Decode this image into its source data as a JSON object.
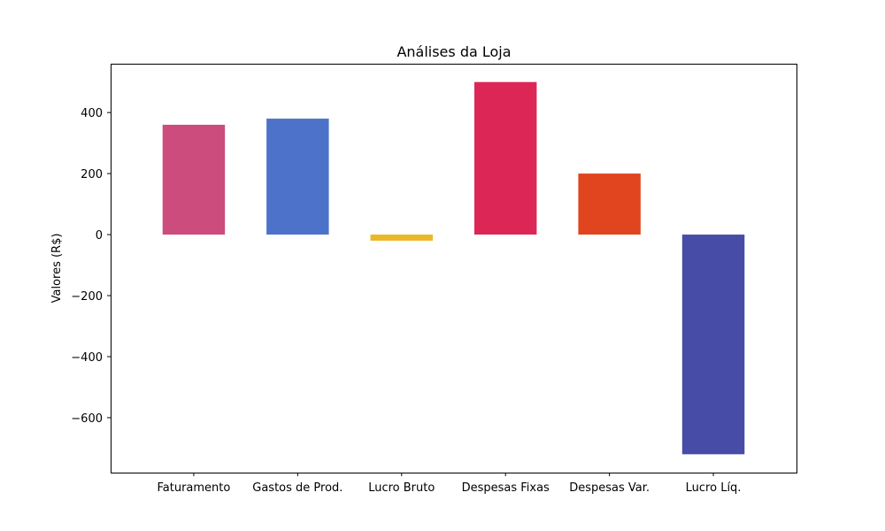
{
  "chart_data": {
    "type": "bar",
    "title": "Análises da Loja",
    "xlabel": "",
    "ylabel": "Valores (R$)",
    "categories": [
      "Faturamento",
      "Gastos de Prod.",
      "Lucro Bruto",
      "Despesas Fixas",
      "Despesas Var.",
      "Lucro Líq."
    ],
    "values": [
      360,
      380,
      -20,
      500,
      200,
      -720
    ],
    "colors": [
      "#cc4c7e",
      "#4c72c9",
      "#e9b828",
      "#dc2756",
      "#e04520",
      "#474ca6"
    ],
    "ylim": [
      -780,
      560
    ],
    "yticks": [
      -600,
      -400,
      -200,
      0,
      200,
      400
    ],
    "ytick_labels": [
      "−600",
      "−400",
      "−200",
      "0",
      "200",
      "400"
    ],
    "grid": false,
    "legend": "none"
  }
}
